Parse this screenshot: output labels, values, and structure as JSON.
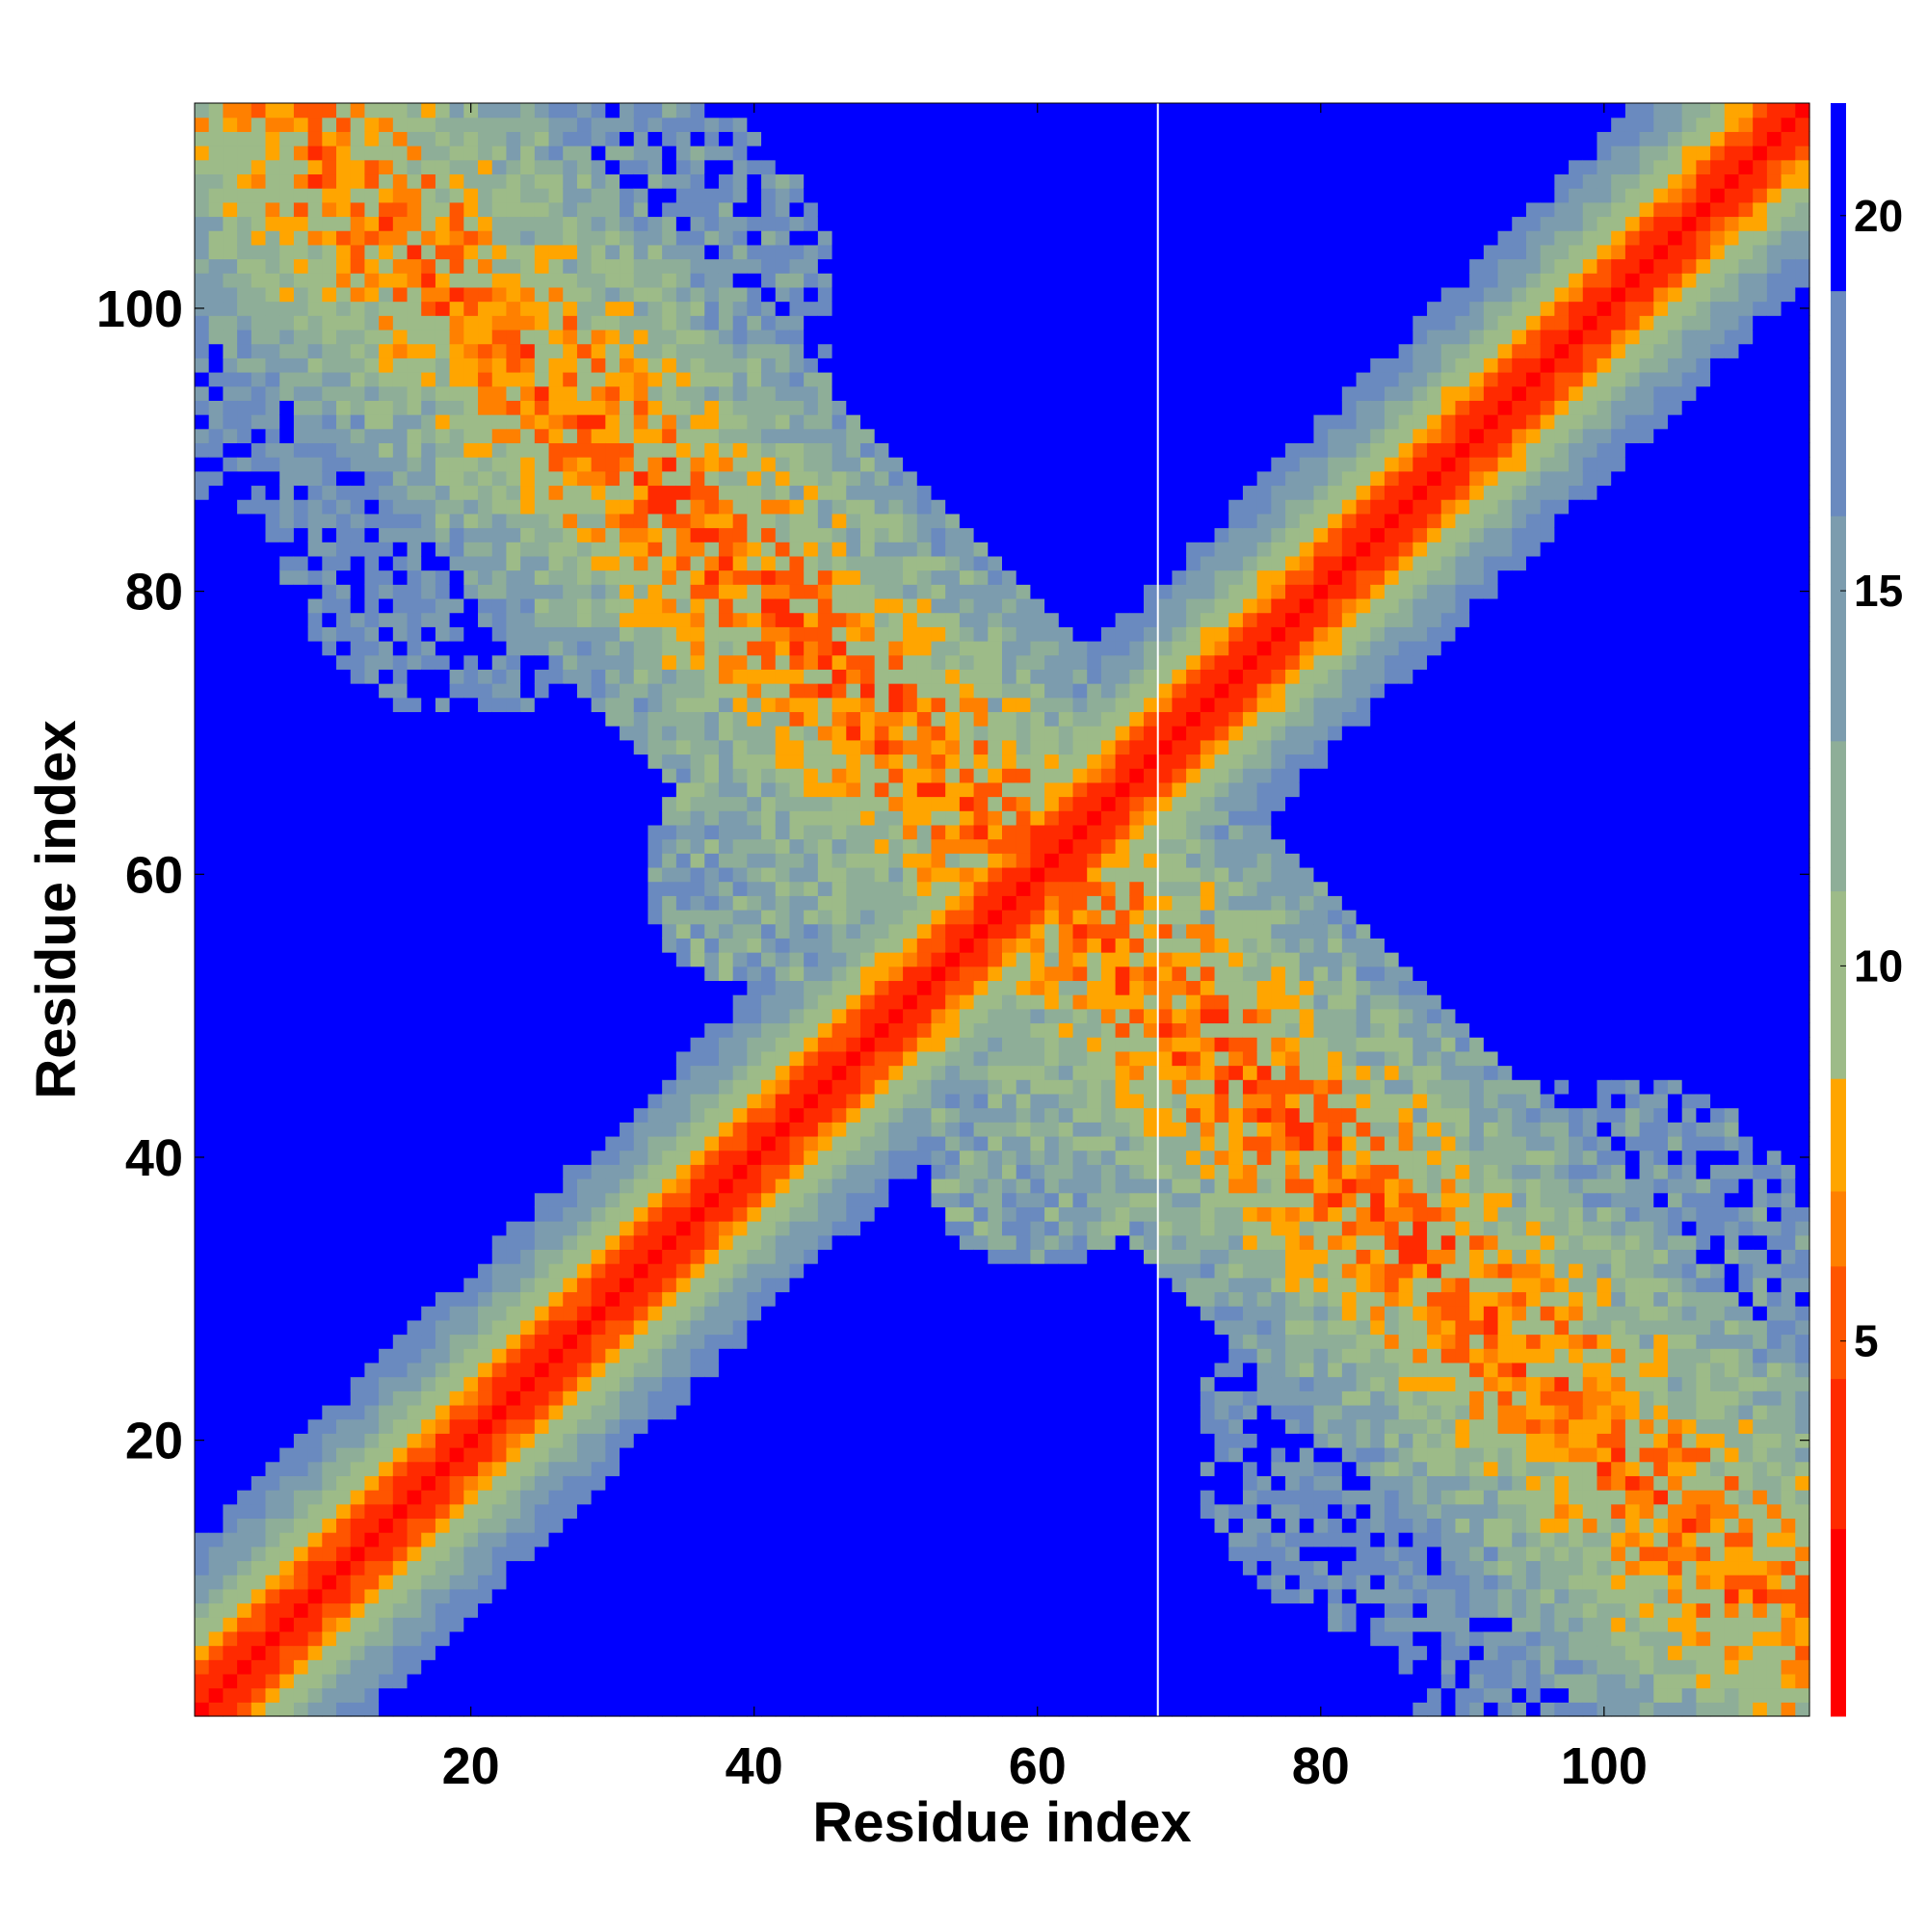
{
  "chart_data": {
    "type": "heatmap",
    "title": "",
    "xlabel": "Residue index",
    "ylabel": "Residue index",
    "xlim": [
      1,
      114
    ],
    "ylim": [
      1,
      114
    ],
    "x_ticks": [
      20,
      40,
      60,
      80,
      100
    ],
    "y_ticks": [
      20,
      40,
      60,
      80,
      100
    ],
    "colorbar": {
      "ticks": [
        5,
        10,
        15,
        20
      ],
      "range": [
        0,
        21.5
      ],
      "colors": [
        "#ff0000",
        "#ff2a00",
        "#ff5500",
        "#ff8000",
        "#ffa500",
        "#9dbb88",
        "#8eae98",
        "#7c9cae",
        "#6a8abf",
        "#0000ff"
      ],
      "boundaries": [
        0,
        2.5,
        4.5,
        6.0,
        7.0,
        8.5,
        11.0,
        13.0,
        16.0,
        19.0,
        21.5
      ]
    },
    "value_description": "Pairwise residue distance map (symmetric); low values red along diagonal, large values blue",
    "features": {
      "main_diagonal": {
        "from": [
          1,
          1
        ],
        "to": [
          114,
          114
        ]
      },
      "anti_diagonal_band": {
        "from": [
          10,
          113
        ],
        "to": [
          113,
          6
        ]
      },
      "gap_column_at_x": 68.5
    }
  }
}
